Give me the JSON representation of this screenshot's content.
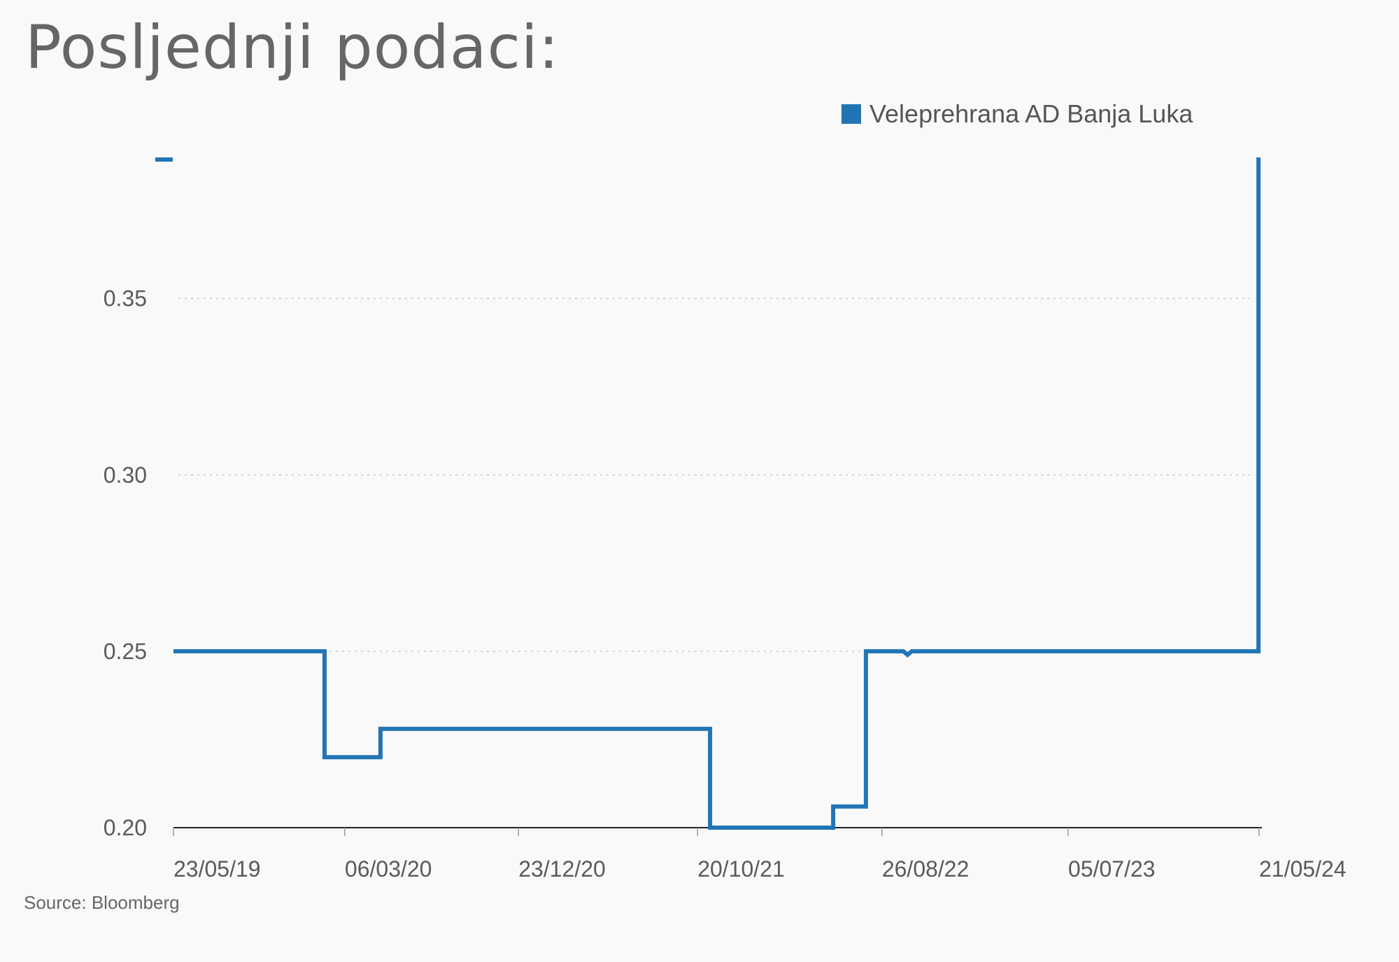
{
  "title": "Posljednji podaci:",
  "source": "Source: Bloomberg",
  "colors": {
    "series": "#2175b5",
    "grid": "#cccccc",
    "axis": "#222222",
    "text": "#5a5a5a"
  },
  "chart_data": {
    "type": "line",
    "step": true,
    "title": "",
    "xlabel": "",
    "ylabel": "",
    "ylim": [
      0.2,
      0.39
    ],
    "xlim": [
      "2019-05-23",
      "2024-05-21"
    ],
    "y_ticks": [
      {
        "value": 0.2,
        "label": "0.20"
      },
      {
        "value": 0.25,
        "label": "0.25"
      },
      {
        "value": 0.3,
        "label": "0.30"
      },
      {
        "value": 0.35,
        "label": "0.35"
      }
    ],
    "x_ticks": [
      {
        "date": "2019-05-23",
        "label": "23/05/19"
      },
      {
        "date": "2020-03-06",
        "label": "06/03/20"
      },
      {
        "date": "2020-12-23",
        "label": "23/12/20"
      },
      {
        "date": "2021-10-20",
        "label": "20/10/21"
      },
      {
        "date": "2022-08-26",
        "label": "26/08/22"
      },
      {
        "date": "2023-07-05",
        "label": "05/07/23"
      },
      {
        "date": "2024-05-21",
        "label": "21/05/24"
      }
    ],
    "grid": "horizontal dotted",
    "legend_position": "top-right",
    "series": [
      {
        "name": "Veleprehrana AD Banja Luka",
        "color": "#2175b5",
        "points": [
          {
            "x": "2019-05-23",
            "y": 0.25
          },
          {
            "x": "2020-02-01",
            "y": 0.25
          },
          {
            "x": "2020-02-01",
            "y": 0.22
          },
          {
            "x": "2020-05-05",
            "y": 0.22
          },
          {
            "x": "2020-05-05",
            "y": 0.228
          },
          {
            "x": "2021-11-10",
            "y": 0.228
          },
          {
            "x": "2021-11-10",
            "y": 0.2
          },
          {
            "x": "2022-06-05",
            "y": 0.2
          },
          {
            "x": "2022-06-05",
            "y": 0.206
          },
          {
            "x": "2022-07-30",
            "y": 0.206
          },
          {
            "x": "2022-07-30",
            "y": 0.25
          },
          {
            "x": "2022-10-01",
            "y": 0.25
          },
          {
            "x": "2022-10-08",
            "y": 0.249
          },
          {
            "x": "2022-10-15",
            "y": 0.25
          },
          {
            "x": "2024-05-20",
            "y": 0.25
          },
          {
            "x": "2024-05-20",
            "y": 0.39
          }
        ]
      }
    ]
  }
}
